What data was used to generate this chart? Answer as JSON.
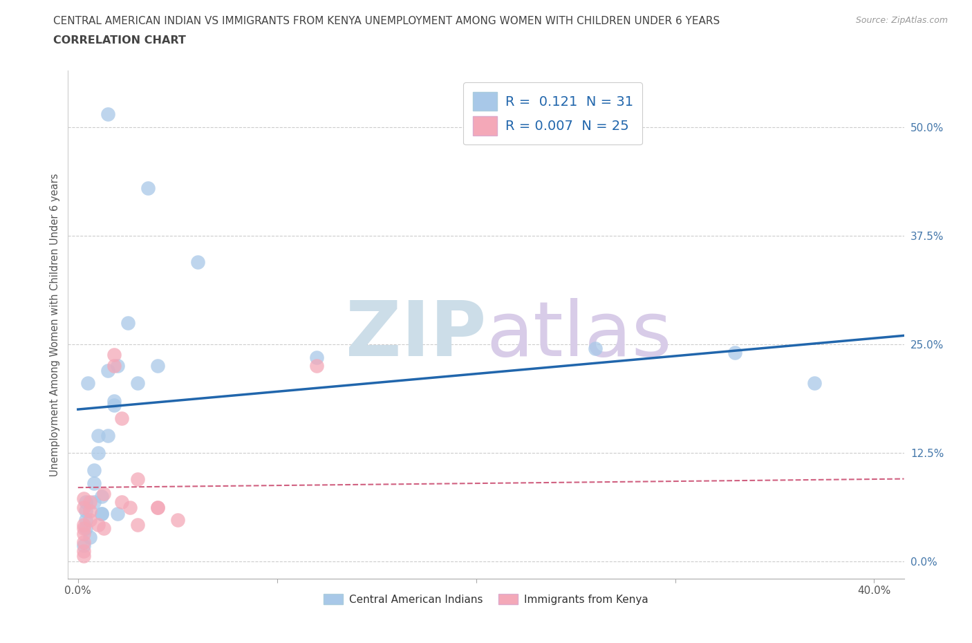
{
  "title_line1": "CENTRAL AMERICAN INDIAN VS IMMIGRANTS FROM KENYA UNEMPLOYMENT AMONG WOMEN WITH CHILDREN UNDER 6 YEARS",
  "title_line2": "CORRELATION CHART",
  "source": "Source: ZipAtlas.com",
  "ylabel": "Unemployment Among Women with Children Under 6 years",
  "xlim": [
    -0.005,
    0.415
  ],
  "ylim": [
    -0.02,
    0.565
  ],
  "yticks": [
    0.0,
    0.125,
    0.25,
    0.375,
    0.5
  ],
  "ytick_labels": [
    "0.0%",
    "12.5%",
    "25.0%",
    "37.5%",
    "50.0%"
  ],
  "xticks": [
    0.0,
    0.1,
    0.2,
    0.3,
    0.4
  ],
  "xtick_labels": [
    "0.0%",
    "",
    "",
    "",
    "40.0%"
  ],
  "legend_label1": "Central American Indians",
  "legend_label2": "Immigrants from Kenya",
  "color_blue": "#a8c8e8",
  "color_pink": "#f4a8b8",
  "line_blue": "#2166ac",
  "line_pink": "#d06080",
  "background": "#ffffff",
  "blue_x": [
    0.005,
    0.035,
    0.06,
    0.025,
    0.015,
    0.01,
    0.01,
    0.008,
    0.008,
    0.004,
    0.004,
    0.004,
    0.004,
    0.006,
    0.003,
    0.015,
    0.02,
    0.03,
    0.04,
    0.018,
    0.018,
    0.008,
    0.012,
    0.012,
    0.02,
    0.012,
    0.12,
    0.26,
    0.33,
    0.37,
    0.015
  ],
  "blue_y": [
    0.205,
    0.43,
    0.345,
    0.275,
    0.22,
    0.145,
    0.125,
    0.105,
    0.09,
    0.068,
    0.058,
    0.048,
    0.038,
    0.028,
    0.018,
    0.145,
    0.225,
    0.205,
    0.225,
    0.18,
    0.185,
    0.068,
    0.075,
    0.055,
    0.055,
    0.055,
    0.235,
    0.245,
    0.24,
    0.205,
    0.515
  ],
  "pink_x": [
    0.003,
    0.003,
    0.003,
    0.003,
    0.003,
    0.003,
    0.003,
    0.003,
    0.006,
    0.006,
    0.006,
    0.01,
    0.013,
    0.013,
    0.018,
    0.018,
    0.022,
    0.022,
    0.026,
    0.03,
    0.03,
    0.04,
    0.05,
    0.04,
    0.12
  ],
  "pink_y": [
    0.038,
    0.032,
    0.022,
    0.012,
    0.006,
    0.042,
    0.062,
    0.072,
    0.068,
    0.058,
    0.048,
    0.042,
    0.078,
    0.038,
    0.238,
    0.225,
    0.165,
    0.068,
    0.062,
    0.095,
    0.042,
    0.062,
    0.048,
    0.062,
    0.225
  ],
  "blue_trend_x": [
    0.0,
    0.415
  ],
  "blue_trend_y": [
    0.175,
    0.26
  ],
  "pink_trend_x": [
    0.0,
    0.415
  ],
  "pink_trend_y": [
    0.085,
    0.095
  ],
  "grid_color": "#cccccc",
  "title_color": "#444444",
  "watermark_zip_color": "#ccdde8",
  "watermark_atlas_color": "#d8cce8"
}
